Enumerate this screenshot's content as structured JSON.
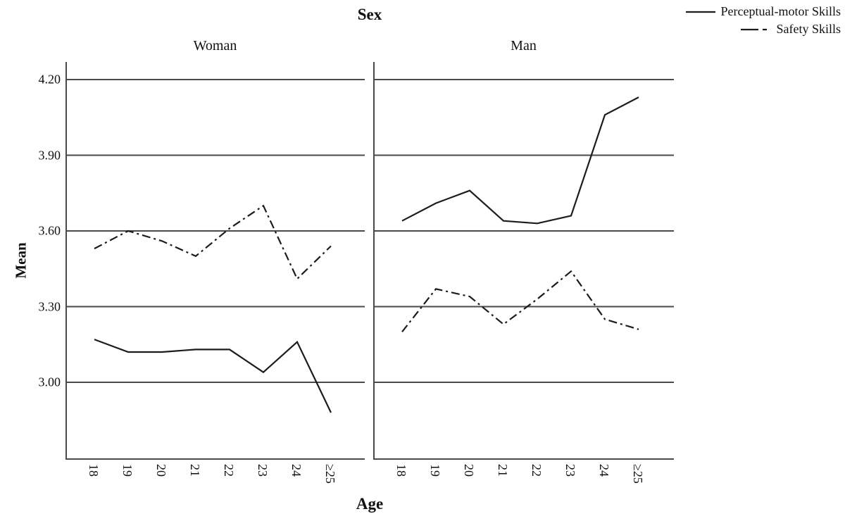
{
  "chart_data": {
    "type": "line",
    "title": "Sex",
    "xlabel": "Age",
    "ylabel": "Mean",
    "categories": [
      "18",
      "19",
      "20",
      "21",
      "22",
      "23",
      "24",
      "≥25"
    ],
    "y_axis": {
      "ticks": [
        "4.20",
        "3.90",
        "3.60",
        "3.30",
        "3.00"
      ],
      "tick_values": [
        4.2,
        3.9,
        3.6,
        3.3,
        3.0
      ],
      "range_shown": [
        2.7,
        4.27
      ],
      "grid": true
    },
    "legend": {
      "position": "top-right",
      "entries": [
        {
          "label": "Perceptual-motor Skills",
          "style": "solid"
        },
        {
          "label": "Safety Skills",
          "style": "dash-dot"
        }
      ]
    },
    "panels": [
      {
        "label": "Woman",
        "series": [
          {
            "name": "Perceptual-motor Skills",
            "style": "solid",
            "values": [
              3.17,
              3.12,
              3.12,
              3.13,
              3.13,
              3.04,
              3.16,
              2.88
            ]
          },
          {
            "name": "Safety Skills",
            "style": "dash-dot",
            "values": [
              3.53,
              3.6,
              3.56,
              3.5,
              3.61,
              3.7,
              3.41,
              3.54
            ]
          }
        ]
      },
      {
        "label": "Man",
        "series": [
          {
            "name": "Perceptual-motor Skills",
            "style": "solid",
            "values": [
              3.64,
              3.71,
              3.76,
              3.64,
              3.63,
              3.66,
              4.06,
              4.13
            ]
          },
          {
            "name": "Safety Skills",
            "style": "dash-dot",
            "values": [
              3.2,
              3.37,
              3.34,
              3.23,
              3.33,
              3.44,
              3.25,
              3.21
            ]
          }
        ]
      }
    ],
    "colors": {
      "line": "#1c1c1c",
      "grid": "#4a4a4a",
      "text": "#111111"
    }
  }
}
